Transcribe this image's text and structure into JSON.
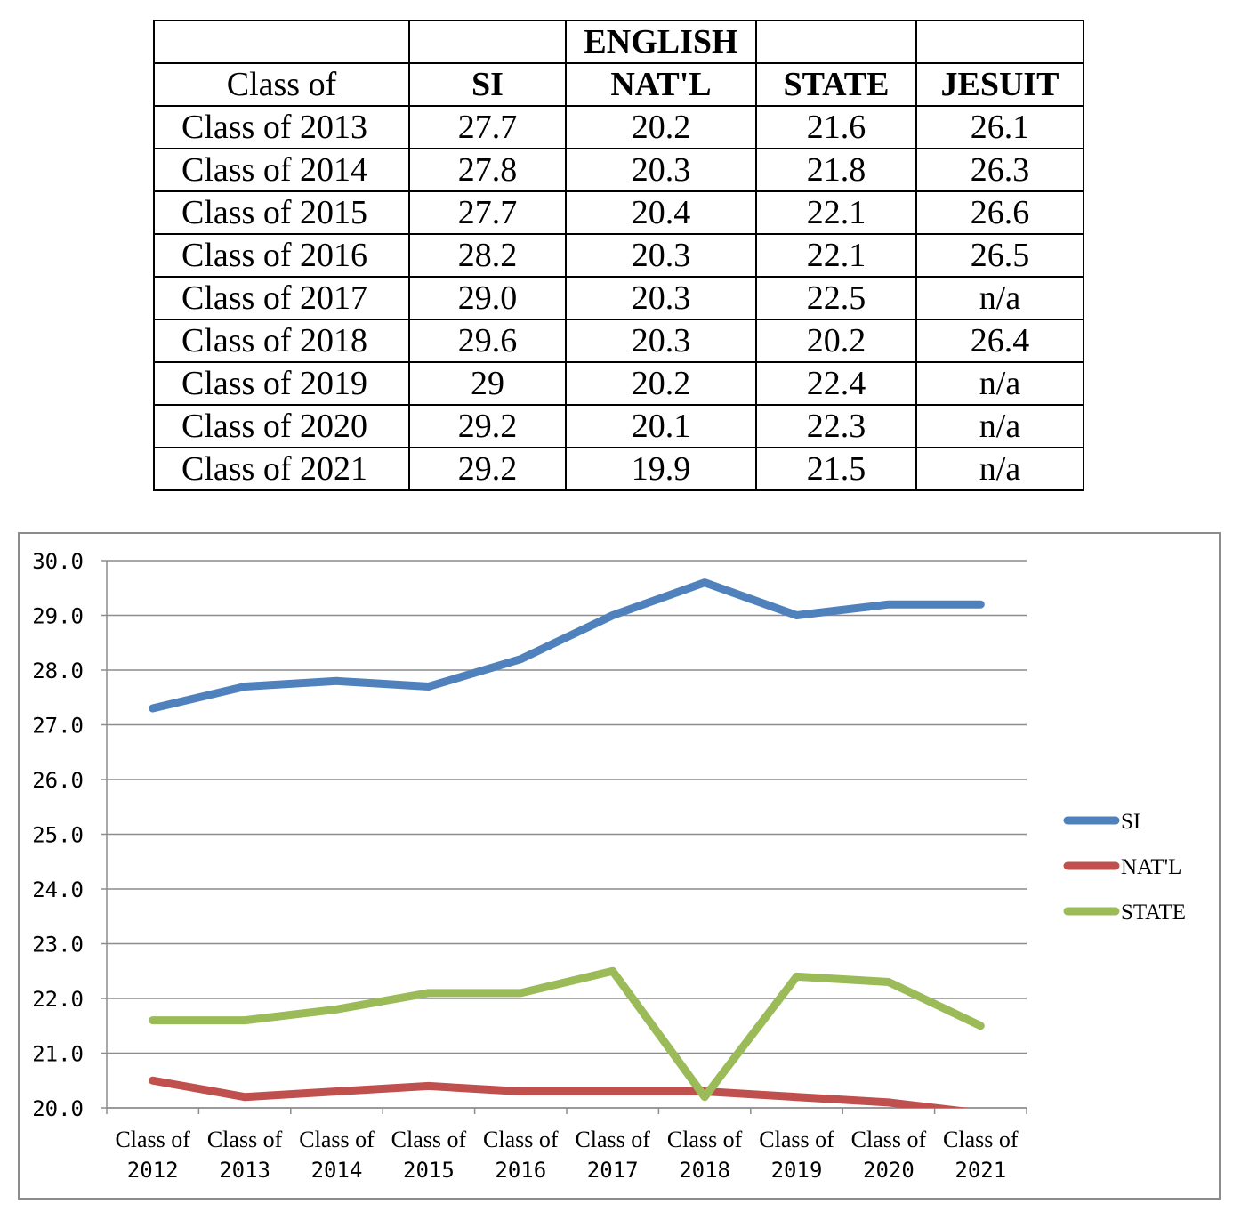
{
  "table": {
    "header_top": [
      "",
      "",
      "ENGLISH",
      "",
      ""
    ],
    "header": [
      "Class of",
      "SI",
      "NAT'L",
      "STATE",
      "JESUIT"
    ],
    "rows": [
      [
        "Class of 2013",
        "27.7",
        "20.2",
        "21.6",
        "26.1"
      ],
      [
        "Class of 2014",
        "27.8",
        "20.3",
        "21.8",
        "26.3"
      ],
      [
        "Class of 2015",
        "27.7",
        "20.4",
        "22.1",
        "26.6"
      ],
      [
        "Class of 2016",
        "28.2",
        "20.3",
        "22.1",
        "26.5"
      ],
      [
        "Class of 2017",
        "29.0",
        "20.3",
        "22.5",
        "n/a"
      ],
      [
        "Class of 2018",
        "29.6",
        "20.3",
        "20.2",
        "26.4"
      ],
      [
        "Class of 2019",
        "29",
        "20.2",
        "22.4",
        "n/a"
      ],
      [
        "Class of 2020",
        "29.2",
        "20.1",
        "22.3",
        "n/a"
      ],
      [
        "Class of 2021",
        "29.2",
        "19.9",
        "21.5",
        "n/a"
      ]
    ]
  },
  "chart_data": {
    "type": "line",
    "categories": [
      [
        "Class of",
        "2012"
      ],
      [
        "Class of",
        "2013"
      ],
      [
        "Class of",
        "2014"
      ],
      [
        "Class of",
        "2015"
      ],
      [
        "Class of",
        "2016"
      ],
      [
        "Class of",
        "2017"
      ],
      [
        "Class of",
        "2018"
      ],
      [
        "Class of",
        "2019"
      ],
      [
        "Class of",
        "2020"
      ],
      [
        "Class of",
        "2021"
      ]
    ],
    "series": [
      {
        "name": "SI",
        "color": "#4f81bd",
        "values": [
          27.3,
          27.7,
          27.8,
          27.7,
          28.2,
          29.0,
          29.6,
          29.0,
          29.2,
          29.2
        ]
      },
      {
        "name": "NAT'L",
        "color": "#c0504d",
        "values": [
          20.5,
          20.2,
          20.3,
          20.4,
          20.3,
          20.3,
          20.3,
          20.2,
          20.1,
          19.9
        ]
      },
      {
        "name": "STATE",
        "color": "#9bbb59",
        "values": [
          21.6,
          21.6,
          21.8,
          22.1,
          22.1,
          22.5,
          20.2,
          22.4,
          22.3,
          21.5
        ]
      }
    ],
    "ylim": [
      20.0,
      30.0
    ],
    "yticks": [
      "20.0",
      "21.0",
      "22.0",
      "23.0",
      "24.0",
      "25.0",
      "26.0",
      "27.0",
      "28.0",
      "29.0",
      "30.0"
    ],
    "grid": true,
    "legend": "right"
  }
}
